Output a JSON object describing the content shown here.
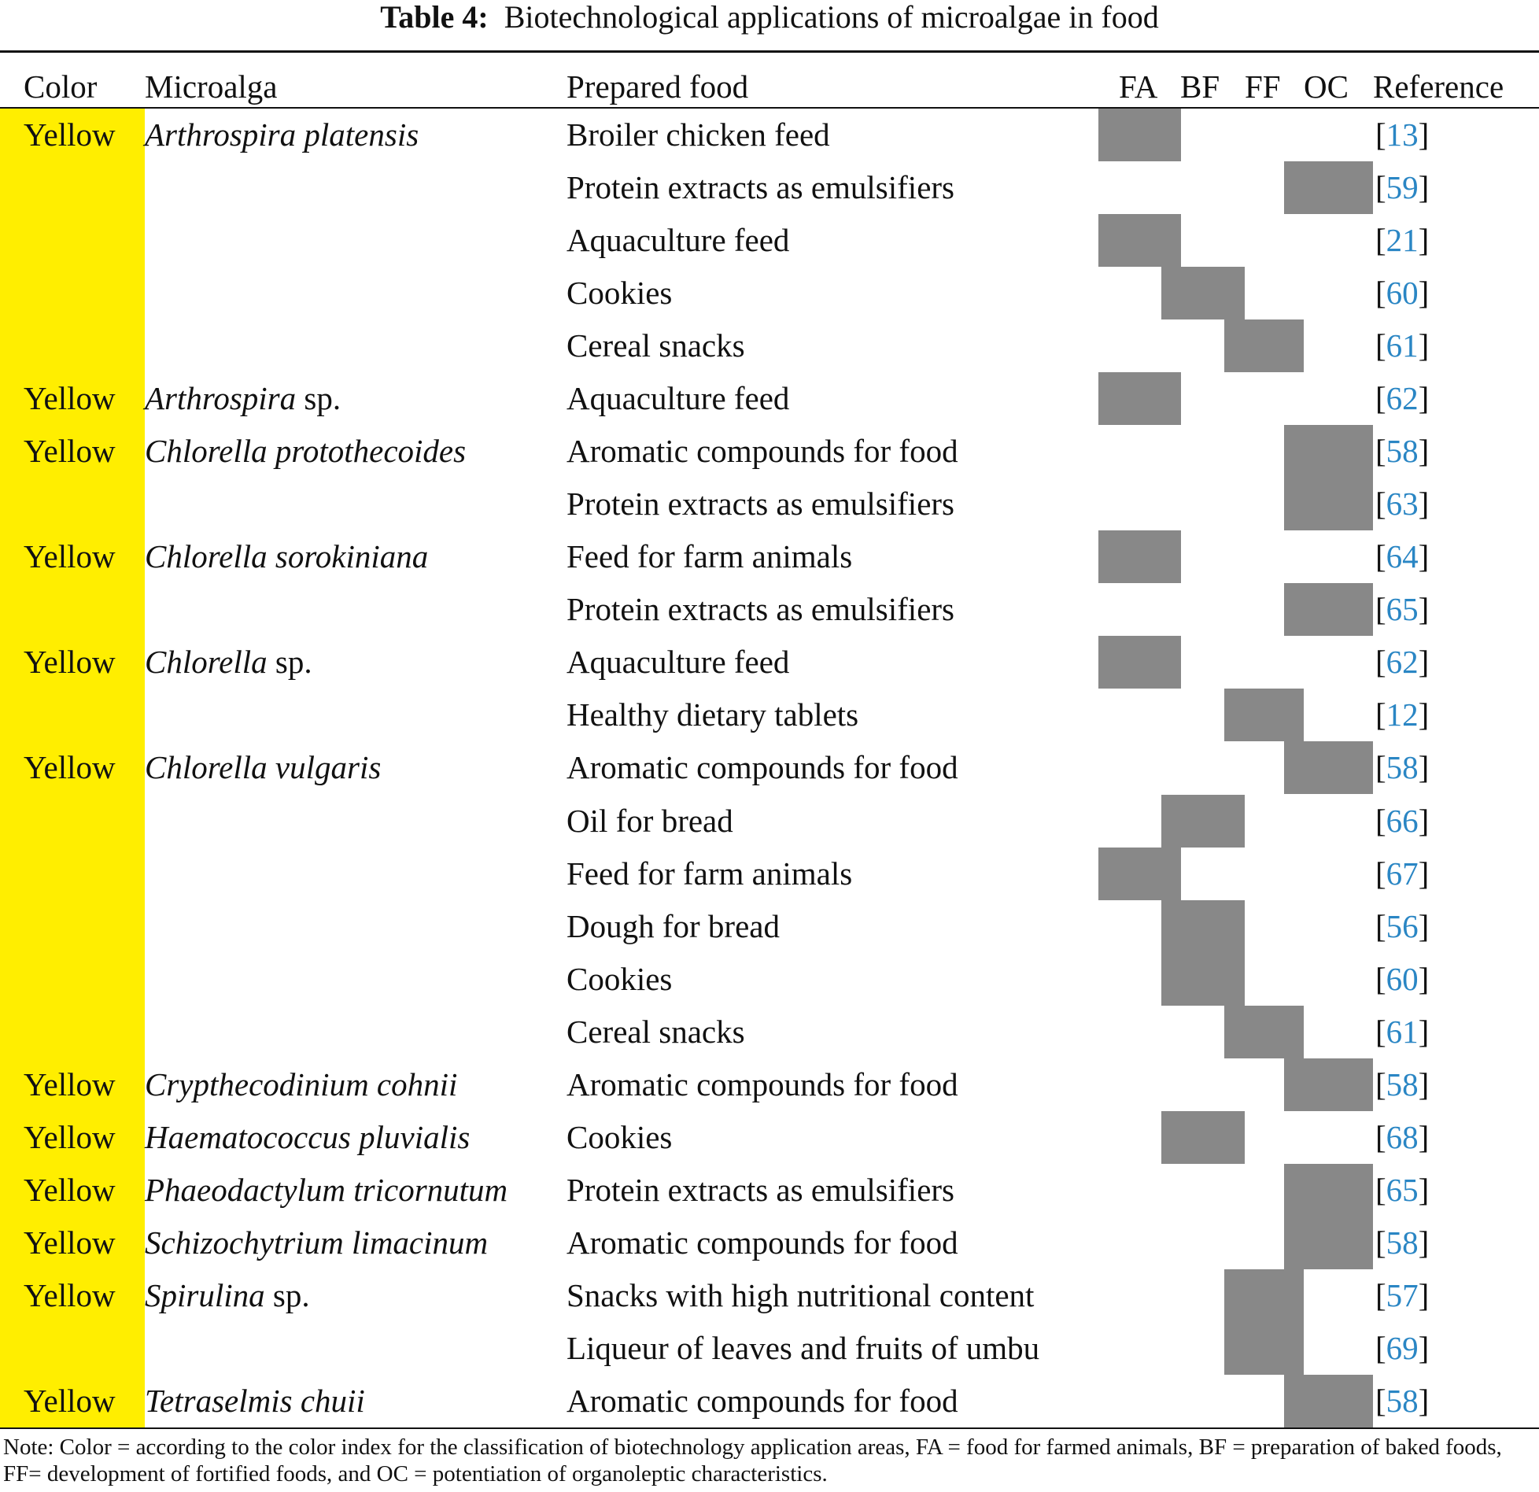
{
  "title": {
    "label": "Table 4:",
    "text": "Biotechnological applications of microalgae in food"
  },
  "headers": {
    "color": "Color",
    "microalga": "Microalga",
    "prepared_food": "Prepared food",
    "fa": "FA",
    "bf": "BF",
    "ff": "FF",
    "oc": "OC",
    "reference": "Reference"
  },
  "colors": {
    "yellow_fill": "#ffee00",
    "mark_fill": "#888888",
    "link": "#2a86c4"
  },
  "rows": [
    {
      "color": "Yellow",
      "genus": "Arthrospira platensis",
      "suffix": "",
      "food": "Broiler chicken feed",
      "category": "FA",
      "ref": "13"
    },
    {
      "color": "",
      "genus": "",
      "suffix": "",
      "food": "Protein extracts as emulsifiers",
      "category": "OC",
      "ref": "59"
    },
    {
      "color": "",
      "genus": "",
      "suffix": "",
      "food": "Aquaculture feed",
      "category": "FA",
      "ref": "21"
    },
    {
      "color": "",
      "genus": "",
      "suffix": "",
      "food": "Cookies",
      "category": "BF",
      "ref": "60"
    },
    {
      "color": "",
      "genus": "",
      "suffix": "",
      "food": "Cereal snacks",
      "category": "FF",
      "ref": "61"
    },
    {
      "color": "Yellow",
      "genus": "Arthrospira",
      "suffix": " sp.",
      "food": "Aquaculture feed",
      "category": "FA",
      "ref": "62"
    },
    {
      "color": "Yellow",
      "genus": "Chlorella protothecoides",
      "suffix": "",
      "food": "Aromatic compounds for food",
      "category": "OC",
      "ref": "58"
    },
    {
      "color": "",
      "genus": "",
      "suffix": "",
      "food": "Protein extracts as emulsifiers",
      "category": "OC",
      "ref": "63"
    },
    {
      "color": "Yellow",
      "genus": "Chlorella sorokiniana",
      "suffix": "",
      "food": "Feed for farm animals",
      "category": "FA",
      "ref": "64"
    },
    {
      "color": "",
      "genus": "",
      "suffix": "",
      "food": "Protein extracts as emulsifiers",
      "category": "OC",
      "ref": "65"
    },
    {
      "color": "Yellow",
      "genus": "Chlorella",
      "suffix": " sp.",
      "food": "Aquaculture feed",
      "category": "FA",
      "ref": "62"
    },
    {
      "color": "",
      "genus": "",
      "suffix": "",
      "food": "Healthy dietary tablets",
      "category": "FF",
      "ref": "12"
    },
    {
      "color": "Yellow",
      "genus": "Chlorella vulgaris",
      "suffix": "",
      "food": "Aromatic compounds for food",
      "category": "OC",
      "ref": "58"
    },
    {
      "color": "",
      "genus": "",
      "suffix": "",
      "food": "Oil for bread",
      "category": "BF",
      "ref": "66"
    },
    {
      "color": "",
      "genus": "",
      "suffix": "",
      "food": "Feed for farm animals",
      "category": "FA",
      "ref": "67"
    },
    {
      "color": "",
      "genus": "",
      "suffix": "",
      "food": "Dough for bread",
      "category": "BF",
      "ref": "56"
    },
    {
      "color": "",
      "genus": "",
      "suffix": "",
      "food": "Cookies",
      "category": "BF",
      "ref": "60"
    },
    {
      "color": "",
      "genus": "",
      "suffix": "",
      "food": "Cereal snacks",
      "category": "FF",
      "ref": "61"
    },
    {
      "color": "Yellow",
      "genus": "Crypthecodinium cohnii",
      "suffix": "",
      "food": "Aromatic compounds for food",
      "category": "OC",
      "ref": "58"
    },
    {
      "color": "Yellow",
      "genus": "Haematococcus pluvialis",
      "suffix": "",
      "food": "Cookies",
      "category": "BF",
      "ref": "68"
    },
    {
      "color": "Yellow",
      "genus": "Phaeodactylum tricornutum",
      "suffix": "",
      "food": "Protein extracts as emulsifiers",
      "category": "OC",
      "ref": "65"
    },
    {
      "color": "Yellow",
      "genus": "Schizochytrium limacinum",
      "suffix": "",
      "food": "Aromatic compounds for food",
      "category": "OC",
      "ref": "58"
    },
    {
      "color": "Yellow",
      "genus": "Spirulina",
      "suffix": " sp.",
      "food": "Snacks with high nutritional content",
      "category": "FF",
      "ref": "57"
    },
    {
      "color": "",
      "genus": "",
      "suffix": "",
      "food": "Liqueur of leaves and fruits of umbu",
      "category": "FF",
      "ref": "69"
    },
    {
      "color": "Yellow",
      "genus": "Tetraselmis chuii",
      "suffix": "",
      "food": "Aromatic compounds for food",
      "category": "OC",
      "ref": "58"
    }
  ],
  "note": "Note: Color = according to the color index for the classification of biotechnology application areas, FA = food for farmed animals, BF = preparation of baked foods, FF= development of fortified foods, and OC = potentiation of organoleptic characteristics."
}
